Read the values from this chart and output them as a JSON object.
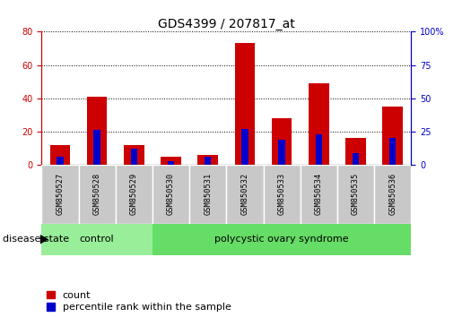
{
  "title": "GDS4399 / 207817_at",
  "samples": [
    "GSM850527",
    "GSM850528",
    "GSM850529",
    "GSM850530",
    "GSM850531",
    "GSM850532",
    "GSM850533",
    "GSM850534",
    "GSM850535",
    "GSM850536"
  ],
  "count_values": [
    12,
    41,
    12,
    5,
    6,
    73,
    28,
    49,
    16,
    35
  ],
  "percentile_values": [
    6,
    26,
    12,
    3,
    6,
    27,
    19,
    23,
    9,
    20
  ],
  "count_color": "#CC0000",
  "percentile_color": "#0000CC",
  "left_ylim": [
    0,
    80
  ],
  "right_ylim": [
    0,
    100
  ],
  "left_yticks": [
    0,
    20,
    40,
    60,
    80
  ],
  "right_yticks": [
    0,
    25,
    50,
    75,
    100
  ],
  "right_yticklabels": [
    "0",
    "25",
    "50",
    "75",
    "100%"
  ],
  "n_control": 3,
  "control_label": "control",
  "disease_label": "polycystic ovary syndrome",
  "group_label": "disease state",
  "legend_count": "count",
  "legend_percentile": "percentile rank within the sample",
  "control_color": "#99EE99",
  "disease_color": "#66DD66",
  "tick_area_color": "#C8C8C8",
  "background_color": "#FFFFFF",
  "title_fontsize": 10,
  "tick_fontsize": 7,
  "legend_fontsize": 8
}
